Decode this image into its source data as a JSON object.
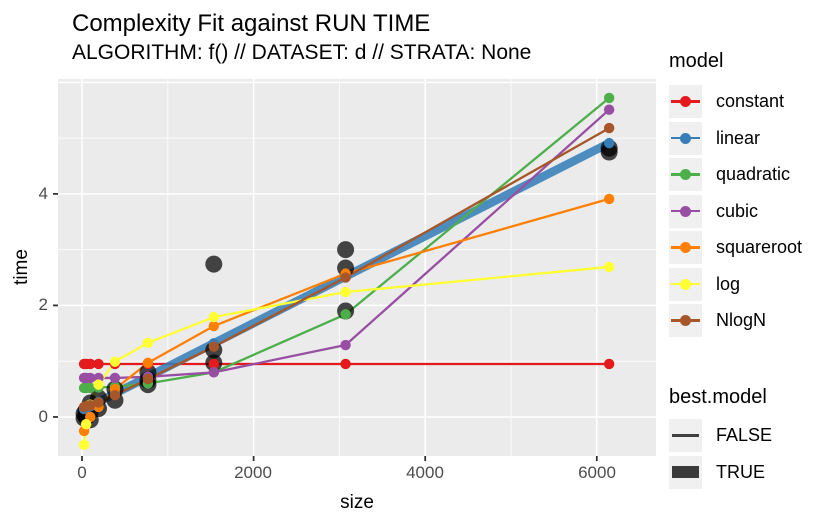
{
  "header": {
    "title": "Complexity Fit against RUN TIME",
    "subtitle": "ALGORITHM: f() // DATASET: d // STRATA: None"
  },
  "axes": {
    "x_label": "size",
    "y_label": "time",
    "x_tick_labels": [
      "0",
      "2000",
      "4000",
      "6000"
    ],
    "y_tick_labels": [
      "0",
      "2",
      "4"
    ]
  },
  "legend": {
    "model": {
      "title": "model",
      "items": [
        {
          "label": "constant",
          "color": "#E41A1C"
        },
        {
          "label": "linear",
          "color": "#377EB8"
        },
        {
          "label": "quadratic",
          "color": "#4DAF4A"
        },
        {
          "label": "cubic",
          "color": "#984EA3"
        },
        {
          "label": "squareroot",
          "color": "#FF7F00"
        },
        {
          "label": "log",
          "color": "#FFFF33"
        },
        {
          "label": "NlogN",
          "color": "#A65628"
        }
      ]
    },
    "best_model": {
      "title": "best.model",
      "items": [
        {
          "label": "FALSE",
          "style": "thin"
        },
        {
          "label": "TRUE",
          "style": "thick"
        }
      ]
    }
  },
  "colors": {
    "panel_background": "#EBEBEB",
    "gridline": "#FFFFFF",
    "tick_mark": "#333333",
    "tick_label": "#4d4d4d",
    "observation_point": "#000000",
    "legend_key_background": "#F0F0F0",
    "best_model_key": "#3a3a3a"
  },
  "chart_data": {
    "type": "line",
    "title": "Complexity Fit against RUN TIME",
    "subtitle": "ALGORITHM: f() // DATASET: d // STRATA: None",
    "xlabel": "size",
    "ylabel": "time",
    "xlim": [
      -280,
      6690
    ],
    "ylim": [
      -0.7,
      6.06
    ],
    "x_tick_values": [
      0,
      2000,
      4000,
      6000
    ],
    "x_minor_gridlines": [
      1000,
      3000,
      5000
    ],
    "y_tick_values": [
      0,
      2,
      4
    ],
    "y_major_gridlines": [
      0,
      2,
      4,
      6
    ],
    "y_minor_gridlines": [
      1,
      3,
      5
    ],
    "legend_position": "right",
    "grid": true,
    "sizes": [
      24,
      48,
      96,
      192,
      384,
      768,
      1536,
      3072,
      6144
    ],
    "series": [
      {
        "name": "constant",
        "color": "#E41A1C",
        "best": false,
        "values": [
          0.95,
          0.95,
          0.95,
          0.95,
          0.95,
          0.95,
          0.95,
          0.95,
          0.95
        ]
      },
      {
        "name": "linear",
        "color": "#377EB8",
        "best": true,
        "values": [
          0.14,
          0.16,
          0.19,
          0.27,
          0.42,
          0.72,
          1.32,
          2.52,
          4.91
        ]
      },
      {
        "name": "quadratic",
        "color": "#4DAF4A",
        "best": false,
        "values": [
          0.52,
          0.52,
          0.52,
          0.53,
          0.54,
          0.6,
          0.8,
          1.84,
          5.72
        ]
      },
      {
        "name": "cubic",
        "color": "#984EA3",
        "best": false,
        "values": [
          0.7,
          0.7,
          0.7,
          0.7,
          0.7,
          0.72,
          0.8,
          1.29,
          5.51
        ]
      },
      {
        "name": "squareroot",
        "color": "#FF7F00",
        "best": false,
        "values": [
          -0.25,
          -0.13,
          0.0,
          0.18,
          0.5,
          0.97,
          1.63,
          2.57,
          3.91
        ]
      },
      {
        "name": "log",
        "color": "#FFFF33",
        "best": false,
        "values": [
          -0.5,
          -0.13,
          0.22,
          0.58,
          0.99,
          1.33,
          1.79,
          2.24,
          2.69
        ]
      },
      {
        "name": "NlogN",
        "color": "#A65628",
        "best": false,
        "values": [
          0.18,
          0.19,
          0.21,
          0.26,
          0.39,
          0.68,
          1.26,
          2.5,
          5.18
        ]
      }
    ],
    "observations": {
      "name": "run-time-data-points",
      "color": "#000000",
      "points": [
        [
          24,
          -0.02
        ],
        [
          24,
          0.06
        ],
        [
          48,
          0.0
        ],
        [
          48,
          0.12
        ],
        [
          96,
          -0.05
        ],
        [
          96,
          0.1
        ],
        [
          96,
          0.25
        ],
        [
          192,
          0.15
        ],
        [
          192,
          0.34
        ],
        [
          384,
          0.3
        ],
        [
          384,
          0.5
        ],
        [
          768,
          0.58
        ],
        [
          768,
          0.66
        ],
        [
          768,
          0.8
        ],
        [
          1536,
          0.97
        ],
        [
          1536,
          1.2
        ],
        [
          1536,
          2.74
        ],
        [
          3072,
          1.9
        ],
        [
          3072,
          2.67
        ],
        [
          3072,
          3.0
        ],
        [
          6144,
          4.75
        ],
        [
          6144,
          4.82
        ]
      ]
    }
  }
}
